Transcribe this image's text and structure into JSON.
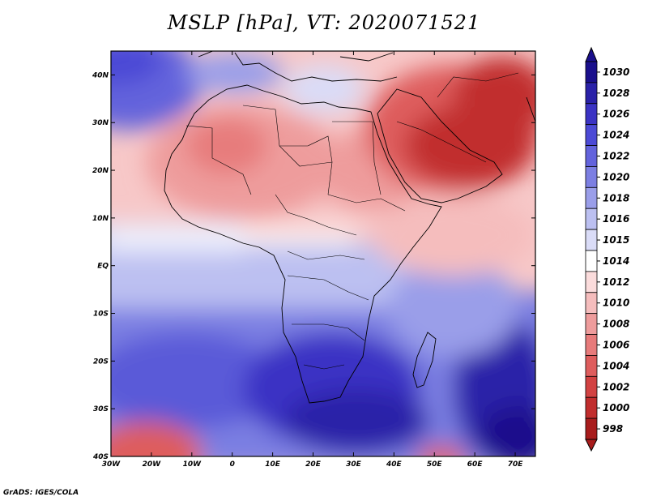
{
  "title": "MSLP [hPa], VT: 2020071521",
  "credit": "GrADS: IGES/COLA",
  "map": {
    "lon_range": [
      -30,
      75
    ],
    "lat_range": [
      -40,
      45
    ],
    "lon_ticks": [
      {
        "value": -30,
        "label": "30W"
      },
      {
        "value": -20,
        "label": "20W"
      },
      {
        "value": -10,
        "label": "10W"
      },
      {
        "value": 0,
        "label": "0"
      },
      {
        "value": 10,
        "label": "10E"
      },
      {
        "value": 20,
        "label": "20E"
      },
      {
        "value": 30,
        "label": "30E"
      },
      {
        "value": 40,
        "label": "40E"
      },
      {
        "value": 50,
        "label": "50E"
      },
      {
        "value": 60,
        "label": "60E"
      },
      {
        "value": 70,
        "label": "70E"
      }
    ],
    "lat_ticks": [
      {
        "value": 40,
        "label": "40N"
      },
      {
        "value": 30,
        "label": "30N"
      },
      {
        "value": 20,
        "label": "20N"
      },
      {
        "value": 10,
        "label": "10N"
      },
      {
        "value": 0,
        "label": "EQ"
      },
      {
        "value": -10,
        "label": "10S"
      },
      {
        "value": -20,
        "label": "20S"
      },
      {
        "value": -30,
        "label": "30S"
      },
      {
        "value": -40,
        "label": "40S"
      }
    ]
  },
  "colorbar": {
    "levels": [
      {
        "label": "1030",
        "color": "#1a0f8c"
      },
      {
        "label": "1028",
        "color": "#2a21a8"
      },
      {
        "label": "1026",
        "color": "#3b33c4"
      },
      {
        "label": "1024",
        "color": "#4c4ad6"
      },
      {
        "label": "1022",
        "color": "#6363dc"
      },
      {
        "label": "1020",
        "color": "#7c7fe2"
      },
      {
        "label": "1018",
        "color": "#9a9ee9"
      },
      {
        "label": "1016",
        "color": "#bcc0f1"
      },
      {
        "label": "1015",
        "color": "#dadcf7"
      },
      {
        "label": "1014",
        "color": "#ffffff"
      },
      {
        "label": "1012",
        "color": "#fbdcdc"
      },
      {
        "label": "1010",
        "color": "#f5bdbd"
      },
      {
        "label": "1008",
        "color": "#ee9c9c"
      },
      {
        "label": "1006",
        "color": "#e77b7b"
      },
      {
        "label": "1004",
        "color": "#de5d5d"
      },
      {
        "label": "1002",
        "color": "#d24242"
      },
      {
        "label": "1000",
        "color": "#c12d2d"
      },
      {
        "label": "998",
        "color": "#a81c1c"
      }
    ]
  }
}
